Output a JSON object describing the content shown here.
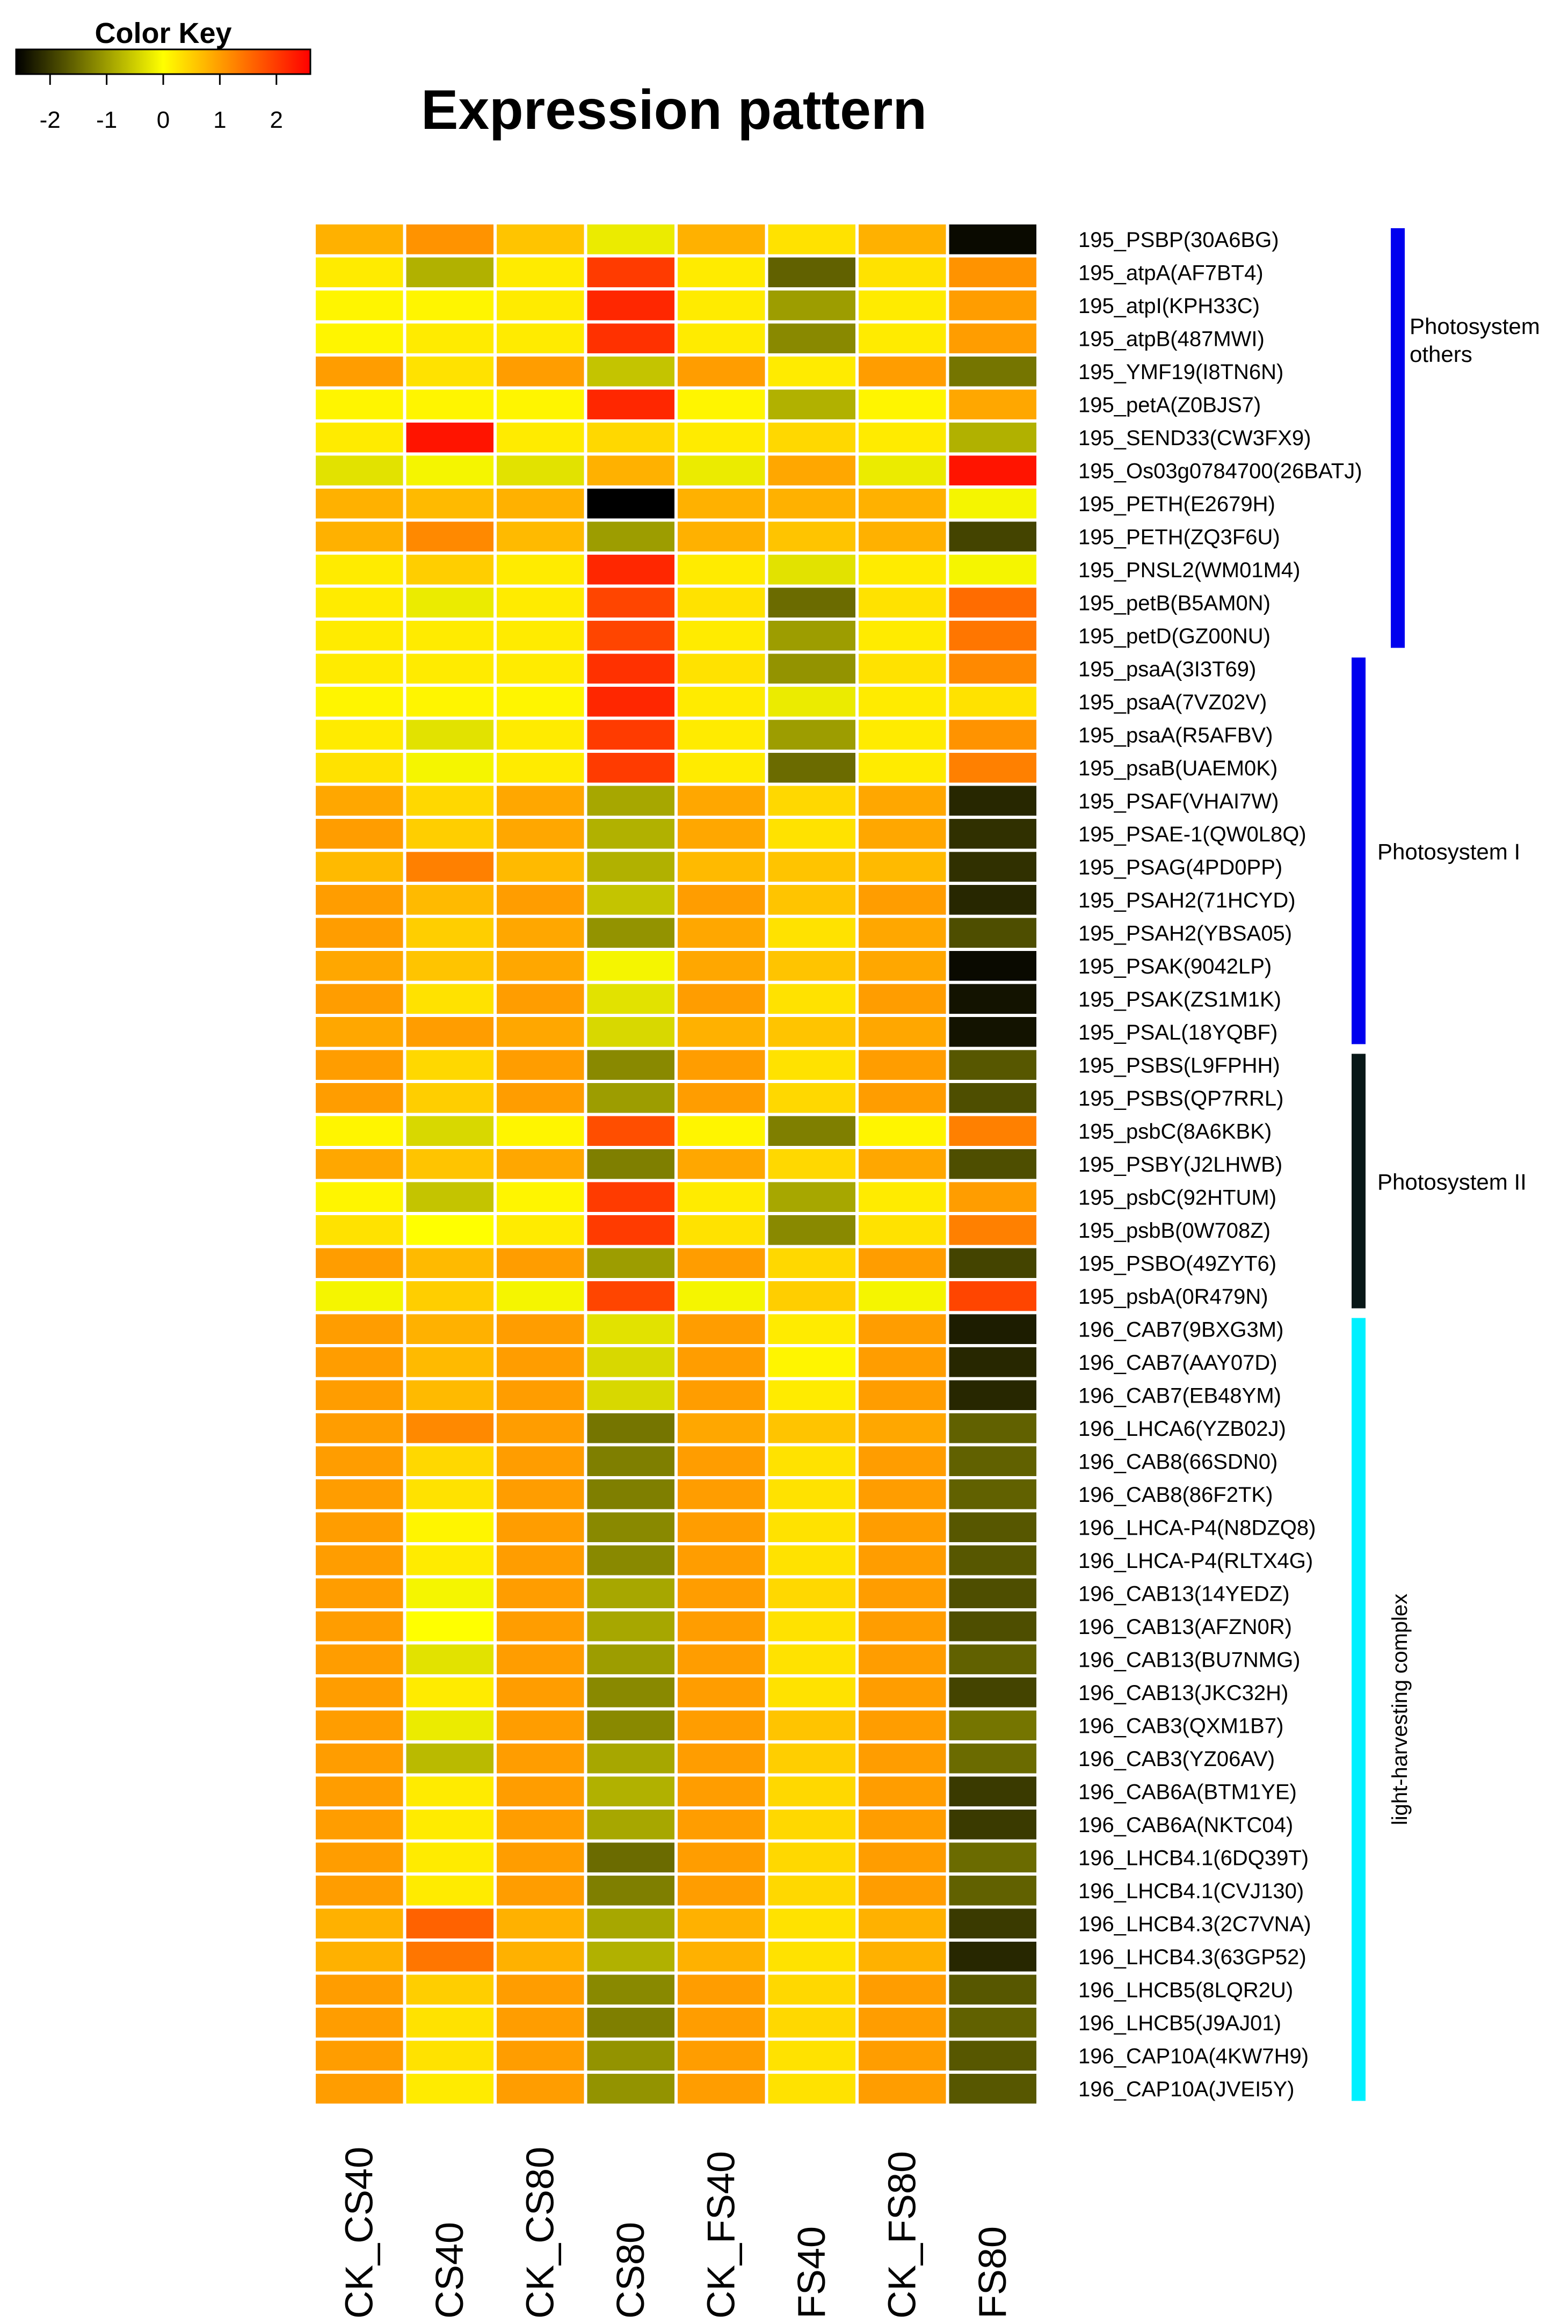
{
  "chart_data": {
    "type": "heatmap",
    "title": "Expression pattern",
    "color_key": {
      "title": "Color Key",
      "ticks": [
        "-2",
        "-1",
        "0",
        "1",
        "2"
      ],
      "range": [
        -2.6,
        2.6
      ],
      "palette": [
        "#000000",
        "#545400",
        "#aaaa00",
        "#ffff00",
        "#ffaa00",
        "#ff5500",
        "#ff0000"
      ]
    },
    "columns": [
      "CK_CS40",
      "CS40",
      "CK_CS80",
      "CS80",
      "CK_FS40",
      "FS40",
      "CK_FS80",
      "FS80"
    ],
    "rows": [
      {
        "label": "195_PSBP(30A6BG)",
        "values": [
          0.8,
          1.1,
          0.6,
          -0.2,
          0.8,
          0.3,
          0.8,
          -2.5
        ]
      },
      {
        "label": "195_atpA(AF7BT4)",
        "values": [
          0.2,
          -0.8,
          0.2,
          2.0,
          0.2,
          -1.6,
          0.3,
          1.1
        ]
      },
      {
        "label": "195_atpI(KPH33C)",
        "values": [
          0.1,
          0.1,
          0.2,
          2.2,
          0.2,
          -1.0,
          0.2,
          1.0
        ]
      },
      {
        "label": "195_atpB(487MWI)",
        "values": [
          0.1,
          0.2,
          0.2,
          2.1,
          0.2,
          -1.2,
          0.2,
          1.0
        ]
      },
      {
        "label": "195_YMF19(I8TN6N)",
        "values": [
          1.0,
          0.3,
          1.0,
          -0.6,
          1.0,
          0.2,
          1.0,
          -1.4
        ]
      },
      {
        "label": "195_petA(Z0BJS7)",
        "values": [
          0.1,
          0.1,
          0.1,
          2.2,
          0.1,
          -0.8,
          0.1,
          0.9
        ]
      },
      {
        "label": "195_SEND33(CW3FX9)",
        "values": [
          0.2,
          2.4,
          0.2,
          0.4,
          0.2,
          0.4,
          0.2,
          -0.8
        ]
      },
      {
        "label": "195_Os03g0784700(26BATJ)",
        "values": [
          -0.3,
          -0.1,
          -0.3,
          0.8,
          -0.2,
          0.9,
          -0.2,
          2.4
        ]
      },
      {
        "label": "195_PETH(E2679H)",
        "values": [
          0.8,
          0.7,
          0.8,
          -2.6,
          0.8,
          0.8,
          0.8,
          -0.1
        ]
      },
      {
        "label": "195_PETH(ZQ3F6U)",
        "values": [
          0.8,
          1.2,
          0.7,
          -1.0,
          0.8,
          0.6,
          0.8,
          -1.9
        ]
      },
      {
        "label": "195_PNSL2(WM01M4)",
        "values": [
          0.2,
          0.5,
          0.2,
          2.2,
          0.2,
          -0.3,
          0.2,
          -0.1
        ]
      },
      {
        "label": "195_petB(B5AM0N)",
        "values": [
          0.2,
          -0.2,
          0.2,
          1.9,
          0.3,
          -1.5,
          0.3,
          1.5
        ]
      },
      {
        "label": "195_petD(GZ00NU)",
        "values": [
          0.2,
          0.2,
          0.2,
          1.9,
          0.2,
          -1.0,
          0.2,
          1.4
        ]
      },
      {
        "label": "195_psaA(3I3T69)",
        "values": [
          0.2,
          0.2,
          0.2,
          2.1,
          0.3,
          -1.1,
          0.3,
          1.2
        ]
      },
      {
        "label": "195_psaA(7VZ02V)",
        "values": [
          0.1,
          0.1,
          0.1,
          2.2,
          0.2,
          -0.2,
          0.2,
          0.3
        ]
      },
      {
        "label": "195_psaA(R5AFBV)",
        "values": [
          0.2,
          -0.3,
          0.2,
          2.0,
          0.2,
          -1.0,
          0.2,
          1.1
        ]
      },
      {
        "label": "195_psaB(UAEM0K)",
        "values": [
          0.3,
          -0.1,
          0.2,
          2.0,
          0.2,
          -1.5,
          0.2,
          1.3
        ]
      },
      {
        "label": "195_PSAF(VHAI7W)",
        "values": [
          0.9,
          0.4,
          0.9,
          -0.9,
          0.9,
          0.4,
          0.9,
          -2.2
        ]
      },
      {
        "label": "195_PSAE-1(QW0L8Q)",
        "values": [
          1.0,
          0.5,
          0.9,
          -0.8,
          0.9,
          0.3,
          0.9,
          -2.1
        ]
      },
      {
        "label": "195_PSAG(4PD0PP)",
        "values": [
          0.7,
          1.3,
          0.7,
          -0.8,
          0.7,
          0.6,
          0.7,
          -2.1
        ]
      },
      {
        "label": "195_PSAH2(71HCYD)",
        "values": [
          1.0,
          0.7,
          1.0,
          -0.6,
          1.0,
          0.6,
          1.0,
          -2.2
        ]
      },
      {
        "label": "195_PSAH2(YBSA05)",
        "values": [
          1.0,
          0.5,
          0.9,
          -1.1,
          0.9,
          0.3,
          0.9,
          -1.8
        ]
      },
      {
        "label": "195_PSAK(9042LP)",
        "values": [
          0.9,
          0.6,
          0.9,
          -0.1,
          0.9,
          0.6,
          0.9,
          -2.5
        ]
      },
      {
        "label": "195_PSAK(ZS1M1K)",
        "values": [
          1.0,
          0.3,
          1.0,
          -0.3,
          1.0,
          0.3,
          1.0,
          -2.4
        ]
      },
      {
        "label": "195_PSAL(18YQBF)",
        "values": [
          0.9,
          1.0,
          0.9,
          -0.4,
          0.8,
          0.6,
          0.9,
          -2.4
        ]
      },
      {
        "label": "195_PSBS(L9FPHH)",
        "values": [
          1.0,
          0.4,
          1.0,
          -1.2,
          1.0,
          0.3,
          1.0,
          -1.7
        ]
      },
      {
        "label": "195_PSBS(QP7RRL)",
        "values": [
          1.0,
          0.5,
          1.0,
          -1.0,
          1.0,
          0.4,
          1.0,
          -1.8
        ]
      },
      {
        "label": "195_psbC(8A6KBK)",
        "values": [
          0.1,
          -0.4,
          0.1,
          1.8,
          0.1,
          -1.3,
          0.1,
          1.3
        ]
      },
      {
        "label": "195_PSBY(J2LHWB)",
        "values": [
          0.9,
          0.6,
          0.9,
          -1.3,
          0.9,
          0.4,
          0.9,
          -1.8
        ]
      },
      {
        "label": "195_psbC(92HTUM)",
        "values": [
          0.1,
          -0.6,
          0.1,
          2.0,
          0.2,
          -0.9,
          0.2,
          1.0
        ]
      },
      {
        "label": "195_psbB(0W708Z)",
        "values": [
          0.3,
          0.0,
          0.2,
          2.0,
          0.3,
          -1.2,
          0.3,
          1.3
        ]
      },
      {
        "label": "195_PSBO(49ZYT6)",
        "values": [
          1.0,
          0.7,
          1.0,
          -1.0,
          1.0,
          0.4,
          1.0,
          -1.9
        ]
      },
      {
        "label": "195_psbA(0R479N)",
        "values": [
          -0.1,
          0.5,
          -0.1,
          1.9,
          -0.1,
          0.5,
          -0.1,
          1.9
        ]
      },
      {
        "label": "196_CAB7(9BXG3M)",
        "values": [
          1.0,
          0.8,
          1.0,
          -0.3,
          1.0,
          0.2,
          1.0,
          -2.3
        ]
      },
      {
        "label": "196_CAB7(AAY07D)",
        "values": [
          1.0,
          0.7,
          1.0,
          -0.4,
          1.0,
          0.1,
          1.0,
          -2.2
        ]
      },
      {
        "label": "196_CAB7(EB48YM)",
        "values": [
          1.0,
          0.7,
          1.0,
          -0.4,
          1.0,
          0.2,
          1.0,
          -2.2
        ]
      },
      {
        "label": "196_LHCA6(YZB02J)",
        "values": [
          1.0,
          1.2,
          1.0,
          -1.4,
          0.9,
          0.6,
          0.9,
          -1.6
        ]
      },
      {
        "label": "196_CAB8(66SDN0)",
        "values": [
          1.0,
          0.4,
          1.0,
          -1.3,
          1.0,
          0.3,
          1.0,
          -1.6
        ]
      },
      {
        "label": "196_CAB8(86F2TK)",
        "values": [
          1.0,
          0.3,
          1.0,
          -1.3,
          1.0,
          0.3,
          1.0,
          -1.6
        ]
      },
      {
        "label": "196_LHCA-P4(N8DZQ8)",
        "values": [
          1.0,
          0.1,
          1.0,
          -1.2,
          1.0,
          0.3,
          1.0,
          -1.7
        ]
      },
      {
        "label": "196_LHCA-P4(RLTX4G)",
        "values": [
          1.0,
          0.2,
          1.0,
          -1.2,
          1.0,
          0.3,
          1.0,
          -1.7
        ]
      },
      {
        "label": "196_CAB13(14YEDZ)",
        "values": [
          1.0,
          -0.1,
          1.0,
          -0.9,
          1.0,
          0.4,
          1.0,
          -1.8
        ]
      },
      {
        "label": "196_CAB13(AFZN0R)",
        "values": [
          1.0,
          0.0,
          1.0,
          -0.9,
          1.0,
          0.3,
          1.0,
          -1.8
        ]
      },
      {
        "label": "196_CAB13(BU7NMG)",
        "values": [
          1.0,
          -0.3,
          1.0,
          -1.0,
          1.0,
          0.3,
          1.0,
          -1.6
        ]
      },
      {
        "label": "196_CAB13(JKC32H)",
        "values": [
          1.0,
          0.2,
          1.0,
          -1.2,
          1.0,
          0.3,
          1.0,
          -1.9
        ]
      },
      {
        "label": "196_CAB3(QXM1B7)",
        "values": [
          1.0,
          -0.2,
          1.0,
          -1.2,
          1.0,
          0.6,
          1.0,
          -1.4
        ]
      },
      {
        "label": "196_CAB3(YZ06AV)",
        "values": [
          1.0,
          -0.7,
          1.0,
          -0.9,
          1.0,
          0.5,
          1.0,
          -1.5
        ]
      },
      {
        "label": "196_CAB6A(BTM1YE)",
        "values": [
          1.0,
          0.2,
          1.0,
          -0.8,
          1.0,
          0.4,
          1.0,
          -2.0
        ]
      },
      {
        "label": "196_CAB6A(NKTC04)",
        "values": [
          1.0,
          0.2,
          1.0,
          -0.9,
          1.0,
          0.4,
          1.0,
          -2.0
        ]
      },
      {
        "label": "196_LHCB4.1(6DQ39T)",
        "values": [
          1.0,
          0.2,
          1.0,
          -1.5,
          1.0,
          0.4,
          1.0,
          -1.5
        ]
      },
      {
        "label": "196_LHCB4.1(CVJ130)",
        "values": [
          1.0,
          0.2,
          1.0,
          -1.3,
          1.0,
          0.4,
          1.0,
          -1.6
        ]
      },
      {
        "label": "196_LHCB4.3(2C7VNA)",
        "values": [
          0.8,
          1.6,
          0.8,
          -0.9,
          0.8,
          0.3,
          0.8,
          -2.0
        ]
      },
      {
        "label": "196_LHCB4.3(63GP52)",
        "values": [
          0.8,
          1.4,
          0.8,
          -0.8,
          0.8,
          0.3,
          0.8,
          -2.2
        ]
      },
      {
        "label": "196_LHCB5(8LQR2U)",
        "values": [
          1.0,
          0.5,
          1.0,
          -1.2,
          1.0,
          0.4,
          1.0,
          -1.7
        ]
      },
      {
        "label": "196_LHCB5(J9AJ01)",
        "values": [
          1.0,
          0.3,
          1.0,
          -1.3,
          1.0,
          0.4,
          1.0,
          -1.6
        ]
      },
      {
        "label": "196_CAP10A(4KW7H9)",
        "values": [
          1.0,
          0.3,
          1.0,
          -1.1,
          1.0,
          0.3,
          1.0,
          -1.7
        ]
      },
      {
        "label": "196_CAP10A(JVEI5Y)",
        "values": [
          1.0,
          0.2,
          1.0,
          -1.1,
          1.0,
          0.3,
          1.0,
          -1.7
        ]
      }
    ],
    "groups": [
      {
        "label": "Photosystem\nothers",
        "rows": [
          0,
          12
        ],
        "color": "#0000ee"
      },
      {
        "label": "Photosystem I",
        "rows": [
          13,
          24
        ],
        "color": "#0000ee"
      },
      {
        "label": "Photosystem II",
        "rows": [
          25,
          32
        ],
        "color": "#081818"
      },
      {
        "label": "light-harvesting complex",
        "rows": [
          33,
          56
        ],
        "color": "#00f0ff"
      }
    ]
  }
}
